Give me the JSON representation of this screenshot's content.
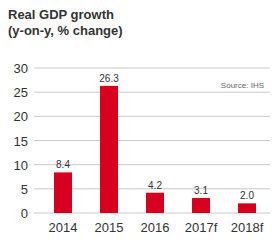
{
  "chart_data": {
    "type": "bar",
    "title": "Real GDP growth",
    "subtitle": "(y-on-y, % change)",
    "source": "Source: IHS",
    "categories": [
      "2014",
      "2015",
      "2016",
      "2017f",
      "2018f"
    ],
    "values": [
      8.4,
      26.3,
      4.2,
      3.1,
      2.0
    ],
    "value_labels": [
      "8.4",
      "26.3",
      "4.2",
      "3.1",
      "2.0"
    ],
    "color": "#d7001e",
    "ylim": [
      0,
      30
    ],
    "yticks": [
      0,
      5,
      10,
      15,
      20,
      25,
      30
    ],
    "grid": true,
    "data_labels": true
  }
}
